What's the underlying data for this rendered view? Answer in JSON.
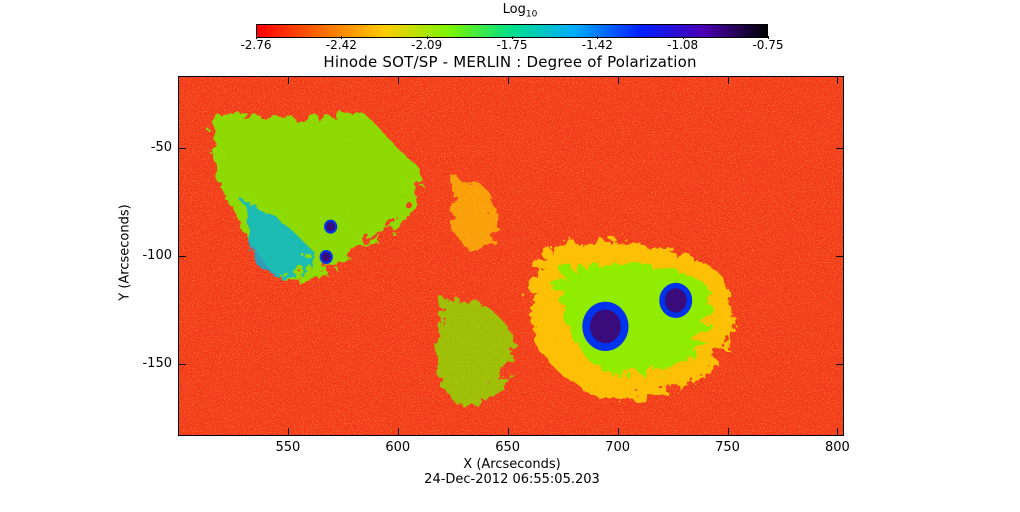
{
  "colorbar": {
    "label_base": "Log",
    "label_sub": "10",
    "ticks": [
      "-2.76",
      "-2.42",
      "-2.09",
      "-1.75",
      "-1.42",
      "-1.08",
      "-0.75"
    ],
    "min": -2.76,
    "max": -0.75,
    "colors": [
      "#ff0000",
      "#ff6a00",
      "#ffcc00",
      "#7cf500",
      "#00e08a",
      "#00aaff",
      "#0022ff",
      "#4b00b4",
      "#000000"
    ]
  },
  "map": {
    "title": "Hinode SOT/SP - MERLIN : Degree of Polarization",
    "xlabel": "X (Arcseconds)",
    "ylabel": "Y (Arcseconds)",
    "date": "24-Dec-2012 06:55:05.203",
    "x_range": [
      500,
      803
    ],
    "y_range": [
      -183,
      -17
    ],
    "x_ticks": [
      "550",
      "600",
      "650",
      "700",
      "750",
      "800"
    ],
    "y_ticks": [
      "-50",
      "-100",
      "-150"
    ],
    "background_color": "#f2391a",
    "spots": [
      {
        "x": 694,
        "y": -132,
        "r": 7,
        "color": "#3a0b7a"
      },
      {
        "x": 726,
        "y": -120,
        "r": 5,
        "color": "#3a0b7a"
      },
      {
        "x": 567,
        "y": -100,
        "r": 2,
        "color": "#3a0b7a"
      },
      {
        "x": 569,
        "y": -86,
        "r": 2,
        "color": "#3a0b7a"
      }
    ]
  }
}
